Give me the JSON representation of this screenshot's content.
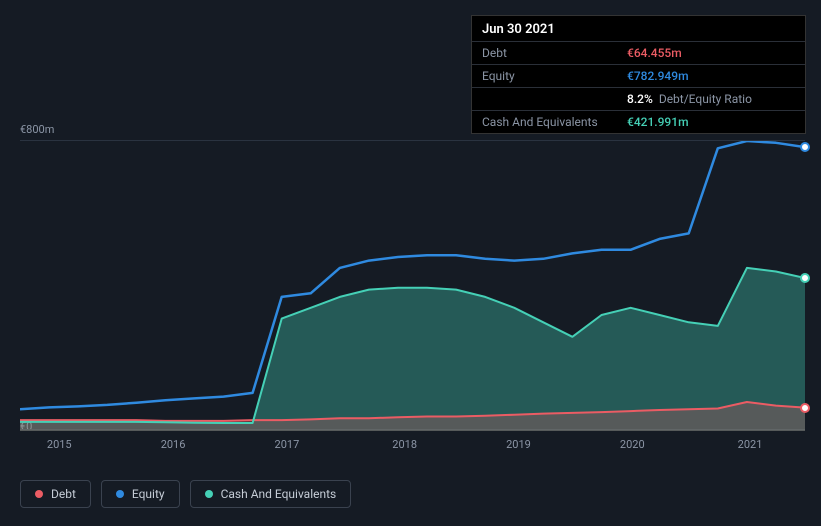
{
  "chart": {
    "type": "area",
    "background_color": "#151b24",
    "grid_color": "#2a3340",
    "text_color": "#8b95a5",
    "y_axis": {
      "labels": [
        "€800m",
        "€0"
      ],
      "lim": [
        0,
        800
      ],
      "label_fontsize": 11
    },
    "x_axis": {
      "labels": [
        "2015",
        "2016",
        "2017",
        "2018",
        "2019",
        "2020",
        "2021"
      ],
      "positions": [
        0.05,
        0.195,
        0.34,
        0.49,
        0.635,
        0.78,
        0.93
      ],
      "label_fontsize": 11
    },
    "series": [
      {
        "name": "Debt",
        "color": "#eb5c64",
        "fill_opacity": 0.25,
        "line_width": 2,
        "data": [
          30,
          30,
          30,
          30,
          30,
          28,
          28,
          28,
          30,
          30,
          32,
          35,
          35,
          38,
          40,
          40,
          42,
          45,
          48,
          50,
          52,
          55,
          58,
          60,
          62,
          80,
          70,
          64.455
        ],
        "endpoint_color": "#eb5c64"
      },
      {
        "name": "Equity",
        "color": "#2f8ae0",
        "fill_opacity": 0.0,
        "line_width": 2.5,
        "data": [
          60,
          65,
          68,
          72,
          78,
          85,
          90,
          95,
          105,
          370,
          380,
          450,
          470,
          480,
          485,
          485,
          475,
          470,
          475,
          490,
          500,
          500,
          530,
          545,
          780,
          800,
          795,
          782.949
        ],
        "endpoint_color": "#2f8ae0"
      },
      {
        "name": "Cash And Equivalents",
        "color": "#45d0b6",
        "fill_opacity": 0.35,
        "line_width": 2,
        "data": [
          25,
          25,
          25,
          25,
          25,
          24,
          23,
          22,
          22,
          310,
          340,
          370,
          390,
          395,
          395,
          390,
          370,
          340,
          300,
          260,
          320,
          340,
          320,
          300,
          290,
          450,
          440,
          421.991
        ],
        "endpoint_color": "#45d0b6"
      }
    ]
  },
  "tooltip": {
    "date": "Jun 30 2021",
    "rows": [
      {
        "label": "Debt",
        "value": "€64.455m",
        "color": "#eb5c64"
      },
      {
        "label": "Equity",
        "value": "€782.949m",
        "color": "#2f8ae0"
      },
      {
        "label": "",
        "value": "8.2%",
        "color": "#ffffff",
        "extra": "Debt/Equity Ratio"
      },
      {
        "label": "Cash And Equivalents",
        "value": "€421.991m",
        "color": "#45d0b6"
      }
    ]
  },
  "legend": {
    "items": [
      {
        "label": "Debt",
        "color": "#eb5c64"
      },
      {
        "label": "Equity",
        "color": "#2f8ae0"
      },
      {
        "label": "Cash And Equivalents",
        "color": "#45d0b6"
      }
    ]
  }
}
